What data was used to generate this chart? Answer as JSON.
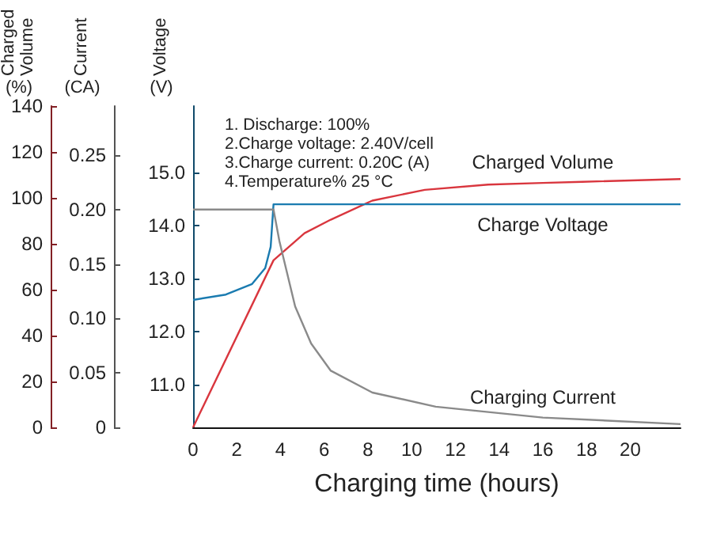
{
  "chart_data": {
    "type": "line",
    "xlabel": "Charging time (hours)",
    "ylabel": "Voltage (V)",
    "y2label": "Current (CA)",
    "y3label": "Charged Volume (%)",
    "xlim": [
      0,
      22.3
    ],
    "xticks": [
      0,
      2,
      4,
      6,
      8,
      10,
      12,
      14,
      16,
      18,
      20
    ],
    "ylim": [
      10.2,
      16.25
    ],
    "yticks": [
      {
        "value": 11,
        "label": "11.0"
      },
      {
        "value": 12,
        "label": "12.0"
      },
      {
        "value": 13,
        "label": "13.0"
      },
      {
        "value": 14,
        "label": "14.0"
      },
      {
        "value": 15,
        "label": "15.0"
      }
    ],
    "y2lim": [
      0,
      0.295
    ],
    "y2ticks": [
      0,
      0.05,
      {
        "value": 0.1,
        "label": "0.10"
      },
      0.15,
      {
        "value": 0.2,
        "label": "0.20"
      },
      0.25
    ],
    "y3lim": [
      0,
      140
    ],
    "y3ticks": [
      0,
      20,
      40,
      60,
      80,
      100,
      120,
      140
    ],
    "marker": "none",
    "annotations": [
      "1. Discharge: 100%",
      "2.Charge voltage: 2.40V/cell",
      "3.Charge current: 0.20C (A)",
      "4.Temperature% 25 °C"
    ],
    "series": [
      {
        "name": "Charged Volume",
        "color": "#d9363e",
        "axis": "y3",
        "x": [
          0,
          3.68,
          5.1,
          6.3,
          8.2,
          10.6,
          13.5,
          16,
          17.8,
          22.3
        ],
        "values": [
          0,
          72.8,
          84.6,
          90.5,
          98.8,
          103.5,
          105.8,
          106.5,
          107,
          108.2
        ]
      },
      {
        "name": "Charge Voltage",
        "color": "#1a7bb0",
        "axis": "y",
        "x": [
          0,
          1.5,
          2.7,
          3.3,
          3.55,
          3.68,
          16,
          22.3
        ],
        "values": [
          12.6,
          12.7,
          12.9,
          13.2,
          13.6,
          14.4,
          14.4,
          14.4
        ]
      },
      {
        "name": "Charging Current",
        "color": "#8a8a8a",
        "axis": "y2",
        "x": [
          0,
          3.68,
          3.95,
          4.67,
          5.4,
          6.3,
          8.2,
          11.1,
          16,
          22.3
        ],
        "values": [
          0.2,
          0.2,
          0.171,
          0.111,
          0.077,
          0.052,
          0.032,
          0.019,
          0.009,
          0.003
        ]
      }
    ]
  }
}
